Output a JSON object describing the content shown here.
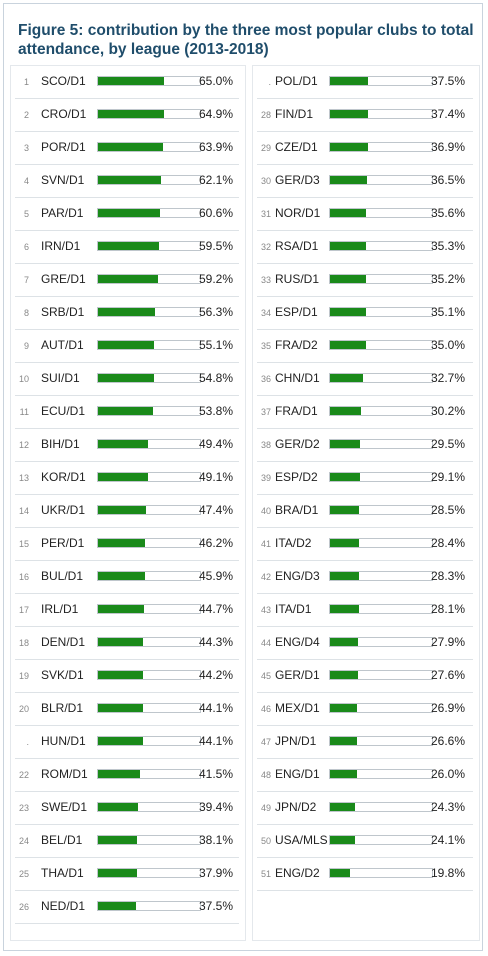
{
  "figure": {
    "title": "Figure 5: contribution by the three most popular clubs to total attendance, by league (2013-2018)"
  },
  "chart_data": {
    "type": "bar",
    "orientation": "horizontal",
    "bar_color": "#1a8a1a",
    "xlim": [
      0,
      100
    ],
    "unit": "%",
    "left_column": [
      {
        "rank": "1",
        "league": "SCO/D1",
        "value": 65.0,
        "label": "65.0%"
      },
      {
        "rank": "2",
        "league": "CRO/D1",
        "value": 64.9,
        "label": "64.9%"
      },
      {
        "rank": "3",
        "league": "POR/D1",
        "value": 63.9,
        "label": "63.9%"
      },
      {
        "rank": "4",
        "league": "SVN/D1",
        "value": 62.1,
        "label": "62.1%"
      },
      {
        "rank": "5",
        "league": "PAR/D1",
        "value": 60.6,
        "label": "60.6%"
      },
      {
        "rank": "6",
        "league": "IRN/D1",
        "value": 59.5,
        "label": "59.5%"
      },
      {
        "rank": "7",
        "league": "GRE/D1",
        "value": 59.2,
        "label": "59.2%"
      },
      {
        "rank": "8",
        "league": "SRB/D1",
        "value": 56.3,
        "label": "56.3%"
      },
      {
        "rank": "9",
        "league": "AUT/D1",
        "value": 55.1,
        "label": "55.1%"
      },
      {
        "rank": "10",
        "league": "SUI/D1",
        "value": 54.8,
        "label": "54.8%"
      },
      {
        "rank": "11",
        "league": "ECU/D1",
        "value": 53.8,
        "label": "53.8%"
      },
      {
        "rank": "12",
        "league": "BIH/D1",
        "value": 49.4,
        "label": "49.4%"
      },
      {
        "rank": "13",
        "league": "KOR/D1",
        "value": 49.1,
        "label": "49.1%"
      },
      {
        "rank": "14",
        "league": "UKR/D1",
        "value": 47.4,
        "label": "47.4%"
      },
      {
        "rank": "15",
        "league": "PER/D1",
        "value": 46.2,
        "label": "46.2%"
      },
      {
        "rank": "16",
        "league": "BUL/D1",
        "value": 45.9,
        "label": "45.9%"
      },
      {
        "rank": "17",
        "league": "IRL/D1",
        "value": 44.7,
        "label": "44.7%"
      },
      {
        "rank": "18",
        "league": "DEN/D1",
        "value": 44.3,
        "label": "44.3%"
      },
      {
        "rank": "19",
        "league": "SVK/D1",
        "value": 44.2,
        "label": "44.2%"
      },
      {
        "rank": "20",
        "league": "BLR/D1",
        "value": 44.1,
        "label": "44.1%"
      },
      {
        "rank": ".",
        "league": "HUN/D1",
        "value": 44.1,
        "label": "44.1%"
      },
      {
        "rank": "22",
        "league": "ROM/D1",
        "value": 41.5,
        "label": "41.5%"
      },
      {
        "rank": "23",
        "league": "SWE/D1",
        "value": 39.4,
        "label": "39.4%"
      },
      {
        "rank": "24",
        "league": "BEL/D1",
        "value": 38.1,
        "label": "38.1%"
      },
      {
        "rank": "25",
        "league": "THA/D1",
        "value": 37.9,
        "label": "37.9%"
      },
      {
        "rank": "26",
        "league": "NED/D1",
        "value": 37.5,
        "label": "37.5%"
      }
    ],
    "right_column": [
      {
        "rank": ".",
        "league": "POL/D1",
        "value": 37.5,
        "label": "37.5%"
      },
      {
        "rank": "28",
        "league": "FIN/D1",
        "value": 37.4,
        "label": "37.4%"
      },
      {
        "rank": "29",
        "league": "CZE/D1",
        "value": 36.9,
        "label": "36.9%"
      },
      {
        "rank": "30",
        "league": "GER/D3",
        "value": 36.5,
        "label": "36.5%"
      },
      {
        "rank": "31",
        "league": "NOR/D1",
        "value": 35.6,
        "label": "35.6%"
      },
      {
        "rank": "32",
        "league": "RSA/D1",
        "value": 35.3,
        "label": "35.3%"
      },
      {
        "rank": "33",
        "league": "RUS/D1",
        "value": 35.2,
        "label": "35.2%"
      },
      {
        "rank": "34",
        "league": "ESP/D1",
        "value": 35.1,
        "label": "35.1%"
      },
      {
        "rank": "35",
        "league": "FRA/D2",
        "value": 35.0,
        "label": "35.0%"
      },
      {
        "rank": "36",
        "league": "CHN/D1",
        "value": 32.7,
        "label": "32.7%"
      },
      {
        "rank": "37",
        "league": "FRA/D1",
        "value": 30.2,
        "label": "30.2%"
      },
      {
        "rank": "38",
        "league": "GER/D2",
        "value": 29.5,
        "label": "29.5%"
      },
      {
        "rank": "39",
        "league": "ESP/D2",
        "value": 29.1,
        "label": "29.1%"
      },
      {
        "rank": "40",
        "league": "BRA/D1",
        "value": 28.5,
        "label": "28.5%"
      },
      {
        "rank": "41",
        "league": "ITA/D2",
        "value": 28.4,
        "label": "28.4%"
      },
      {
        "rank": "42",
        "league": "ENG/D3",
        "value": 28.3,
        "label": "28.3%"
      },
      {
        "rank": "43",
        "league": "ITA/D1",
        "value": 28.1,
        "label": "28.1%"
      },
      {
        "rank": "44",
        "league": "ENG/D4",
        "value": 27.9,
        "label": "27.9%"
      },
      {
        "rank": "45",
        "league": "GER/D1",
        "value": 27.6,
        "label": "27.6%"
      },
      {
        "rank": "46",
        "league": "MEX/D1",
        "value": 26.9,
        "label": "26.9%"
      },
      {
        "rank": "47",
        "league": "JPN/D1",
        "value": 26.6,
        "label": "26.6%"
      },
      {
        "rank": "48",
        "league": "ENG/D1",
        "value": 26.0,
        "label": "26.0%"
      },
      {
        "rank": "49",
        "league": "JPN/D2",
        "value": 24.3,
        "label": "24.3%"
      },
      {
        "rank": "50",
        "league": "USA/MLS",
        "value": 24.1,
        "label": "24.1%"
      },
      {
        "rank": "51",
        "league": "ENG/D2",
        "value": 19.8,
        "label": "19.8%"
      }
    ]
  }
}
